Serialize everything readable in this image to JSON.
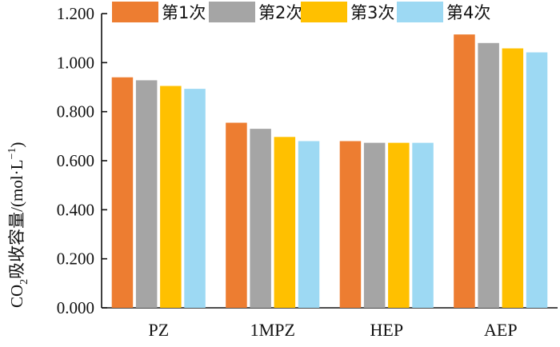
{
  "chart_data": {
    "type": "bar",
    "categories": [
      "PZ",
      "1MPZ",
      "HEP",
      "AEP"
    ],
    "series": [
      {
        "name": "第1次",
        "color": "#ED7D31",
        "values": [
          0.94,
          0.755,
          0.68,
          1.115
        ]
      },
      {
        "name": "第2次",
        "color": "#A5A5A5",
        "values": [
          0.928,
          0.73,
          0.673,
          1.08
        ]
      },
      {
        "name": "第3次",
        "color": "#FFC000",
        "values": [
          0.905,
          0.697,
          0.673,
          1.058
        ]
      },
      {
        "name": "第4次",
        "color": "#9DD9F3",
        "values": [
          0.893,
          0.68,
          0.673,
          1.042
        ]
      }
    ],
    "ylabel": {
      "prefix": "CO",
      "sub": "2",
      "main": "吸收容量/(mol·L",
      "sup": "−1",
      "suffix": ")"
    },
    "ylim": [
      0,
      1.2
    ],
    "yticks": [
      "0.000",
      "0.200",
      "0.400",
      "0.600",
      "0.800",
      "1.000",
      "1.200"
    ],
    "legend_position": "top",
    "grid": false
  }
}
